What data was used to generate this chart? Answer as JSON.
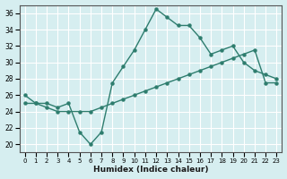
{
  "xlabel": "Humidex (Indice chaleur)",
  "ylabel": "",
  "xlim": [
    -0.5,
    23.5
  ],
  "ylim": [
    19,
    37
  ],
  "yticks": [
    20,
    22,
    24,
    26,
    28,
    30,
    32,
    34,
    36
  ],
  "xticks": [
    0,
    1,
    2,
    3,
    4,
    5,
    6,
    7,
    8,
    9,
    10,
    11,
    12,
    13,
    14,
    15,
    16,
    17,
    18,
    19,
    20,
    21,
    22,
    23
  ],
  "background_color": "#d6eef0",
  "grid_color": "#ffffff",
  "line_color": "#2e7d6e",
  "line1_x": [
    0,
    1,
    2,
    3,
    4,
    5,
    6,
    7,
    8,
    9,
    10,
    11,
    12,
    13,
    14,
    15,
    16,
    17,
    18,
    19,
    20,
    21,
    22,
    23
  ],
  "line1_y": [
    26,
    25,
    25,
    24.5,
    25,
    21.5,
    20,
    21.5,
    27.5,
    29.5,
    31.5,
    34,
    36.5,
    35.5,
    34.5,
    34.5,
    33,
    31,
    31.5,
    32,
    30,
    29,
    28.5,
    28
  ],
  "line2_x": [
    0,
    1,
    2,
    3,
    4,
    5,
    6,
    7,
    8,
    9,
    10,
    11,
    12,
    13,
    14,
    15,
    16,
    17,
    18,
    19,
    20,
    21,
    22,
    23
  ],
  "line2_y": [
    25,
    25,
    24.5,
    24,
    24,
    24,
    24,
    24.5,
    25,
    25.5,
    26,
    26.5,
    27,
    27.5,
    28,
    28.5,
    29,
    29.5,
    30,
    30.5,
    31,
    31.5,
    27.5,
    27.5
  ]
}
